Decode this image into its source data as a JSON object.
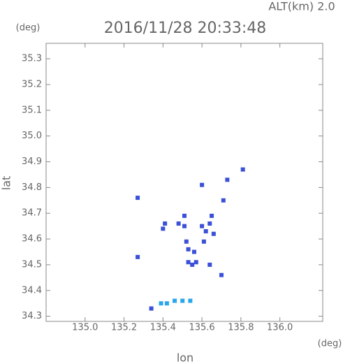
{
  "chart_data": {
    "type": "scatter",
    "title": "2016/11/28 20:33:48",
    "subtitle": "ALT(km) 2.0",
    "y_unit": "(deg)",
    "x_unit": "(deg)",
    "xlabel": "lon",
    "ylabel": "lat",
    "xlim": [
      134.8,
      136.22
    ],
    "ylim": [
      34.28,
      35.36
    ],
    "xticks": [
      {
        "value": 135,
        "label": "135.0"
      },
      135.2,
      135.4,
      135.6,
      135.8,
      {
        "value": 136,
        "label": "136.0"
      }
    ],
    "yticks": [
      34.3,
      34.4,
      34.5,
      34.6,
      34.7,
      34.8,
      34.9,
      {
        "value": 35,
        "label": "35.0"
      },
      35.1,
      35.2,
      35.3
    ],
    "series": [
      {
        "color": "#3a50d8",
        "x": [
          135.27,
          135.27,
          135.81,
          135.6,
          135.73,
          135.71,
          135.41,
          135.4,
          135.48,
          135.51,
          135.51,
          135.52,
          135.53,
          135.56,
          135.53,
          135.57,
          135.55,
          135.6,
          135.62,
          135.64,
          135.65,
          135.66,
          135.61,
          135.64,
          135.7,
          135.34
        ],
        "y": [
          34.76,
          34.53,
          34.87,
          34.81,
          34.83,
          34.75,
          34.66,
          34.64,
          34.66,
          34.69,
          34.65,
          34.59,
          34.56,
          34.55,
          34.51,
          34.51,
          34.5,
          34.65,
          34.63,
          34.66,
          34.69,
          34.62,
          34.59,
          34.5,
          34.46,
          34.33
        ]
      },
      {
        "color": "#2aa6ea",
        "x": [
          135.39,
          135.42,
          135.46,
          135.5,
          135.54
        ],
        "y": [
          34.35,
          34.35,
          34.36,
          34.36,
          34.36
        ]
      }
    ]
  }
}
